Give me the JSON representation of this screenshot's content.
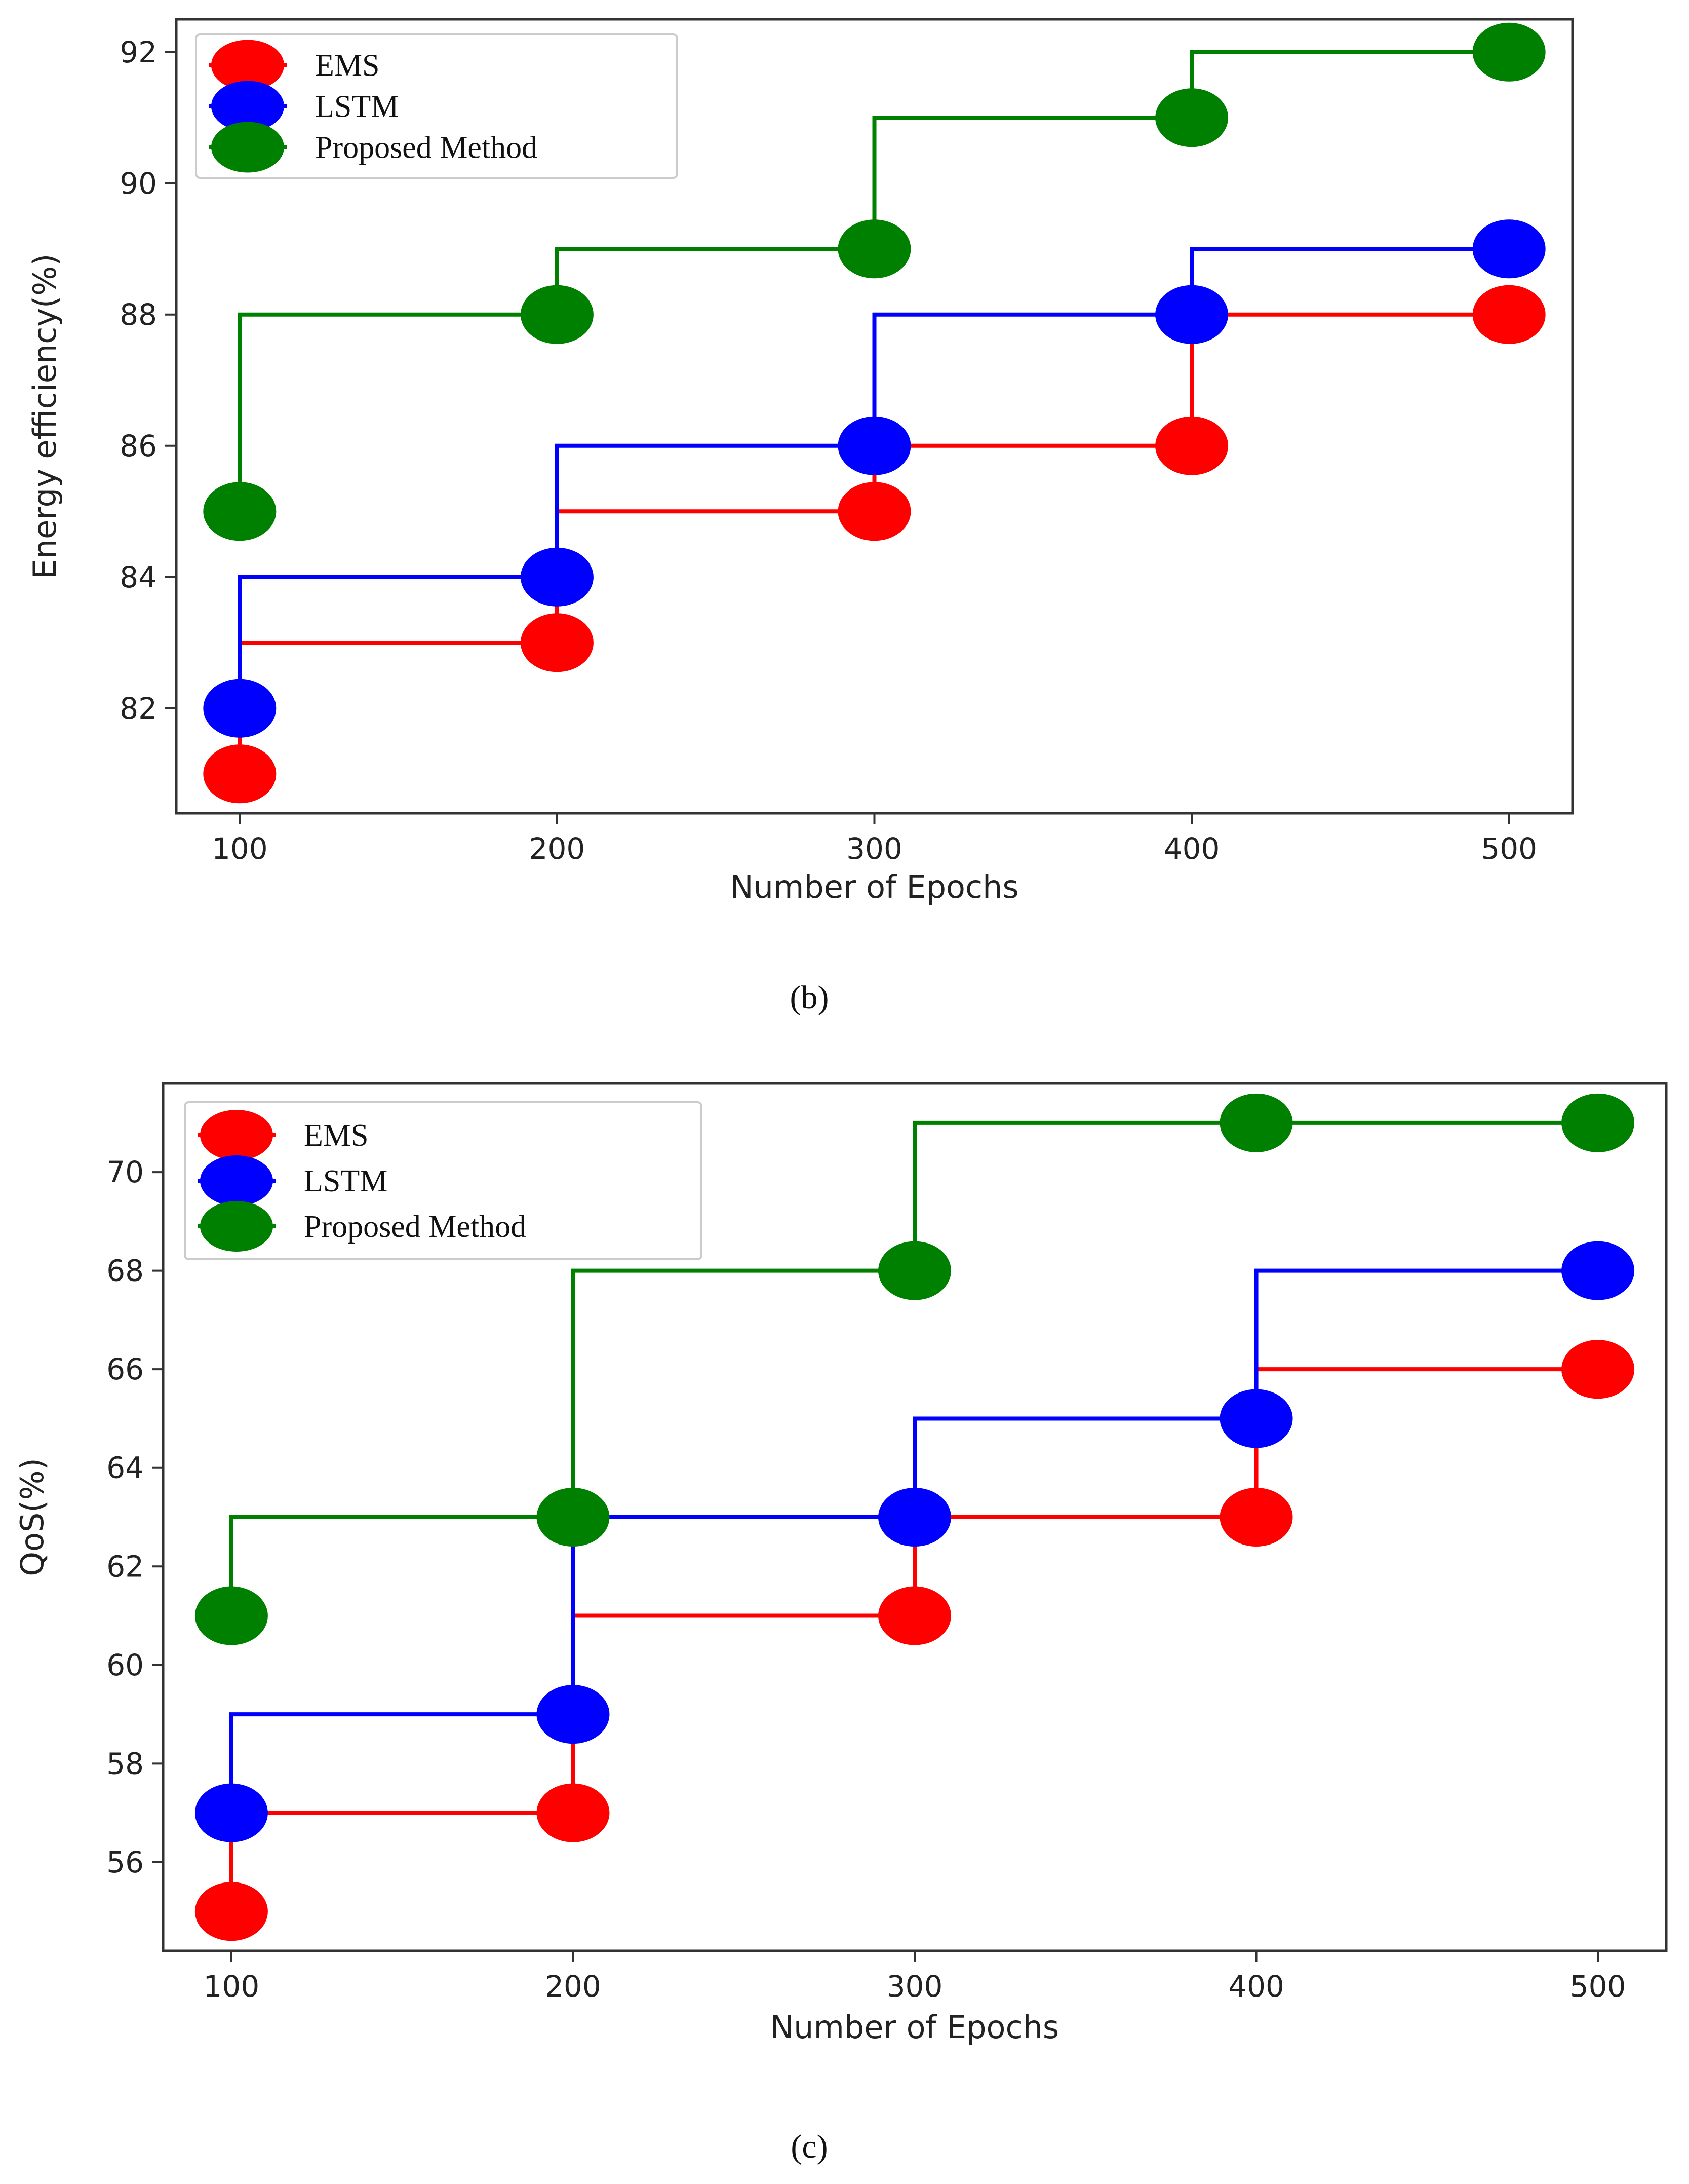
{
  "chart_data": [
    {
      "type": "step",
      "panel_label": "(b)",
      "xlabel": "Number of Epochs",
      "ylabel": "Energy efficiency(%)",
      "x": [
        100,
        200,
        300,
        400,
        500
      ],
      "x_ticks": [
        "100",
        "200",
        "300",
        "400",
        "500"
      ],
      "y_ticks": [
        "82",
        "84",
        "86",
        "88",
        "90",
        "92"
      ],
      "xlim": [
        80,
        520
      ],
      "ylim": [
        80.4,
        92.5
      ],
      "legend": "top-left",
      "series": [
        {
          "name": "EMS",
          "color": "#ff0000",
          "values": [
            81,
            83,
            85,
            86,
            88
          ]
        },
        {
          "name": "LSTM",
          "color": "#0000ff",
          "values": [
            82,
            84,
            86,
            88,
            89
          ]
        },
        {
          "name": "Proposed Method",
          "color": "#008000",
          "values": [
            85,
            88,
            89,
            91,
            92
          ]
        }
      ]
    },
    {
      "type": "step",
      "panel_label": "(c)",
      "xlabel": "Number of Epochs",
      "ylabel": "QoS(%)",
      "x": [
        100,
        200,
        300,
        400,
        500
      ],
      "x_ticks": [
        "100",
        "200",
        "300",
        "400",
        "500"
      ],
      "y_ticks": [
        "56",
        "58",
        "60",
        "62",
        "64",
        "66",
        "68",
        "70"
      ],
      "xlim": [
        80,
        520
      ],
      "ylim": [
        54.2,
        71.8
      ],
      "legend": "top-left",
      "series": [
        {
          "name": "EMS",
          "color": "#ff0000",
          "values": [
            55,
            57,
            61,
            63,
            66
          ]
        },
        {
          "name": "LSTM",
          "color": "#0000ff",
          "values": [
            57,
            59,
            63,
            65,
            68
          ]
        },
        {
          "name": "Proposed Method",
          "color": "#008000",
          "values": [
            61,
            63,
            68,
            71,
            71
          ]
        }
      ]
    }
  ]
}
